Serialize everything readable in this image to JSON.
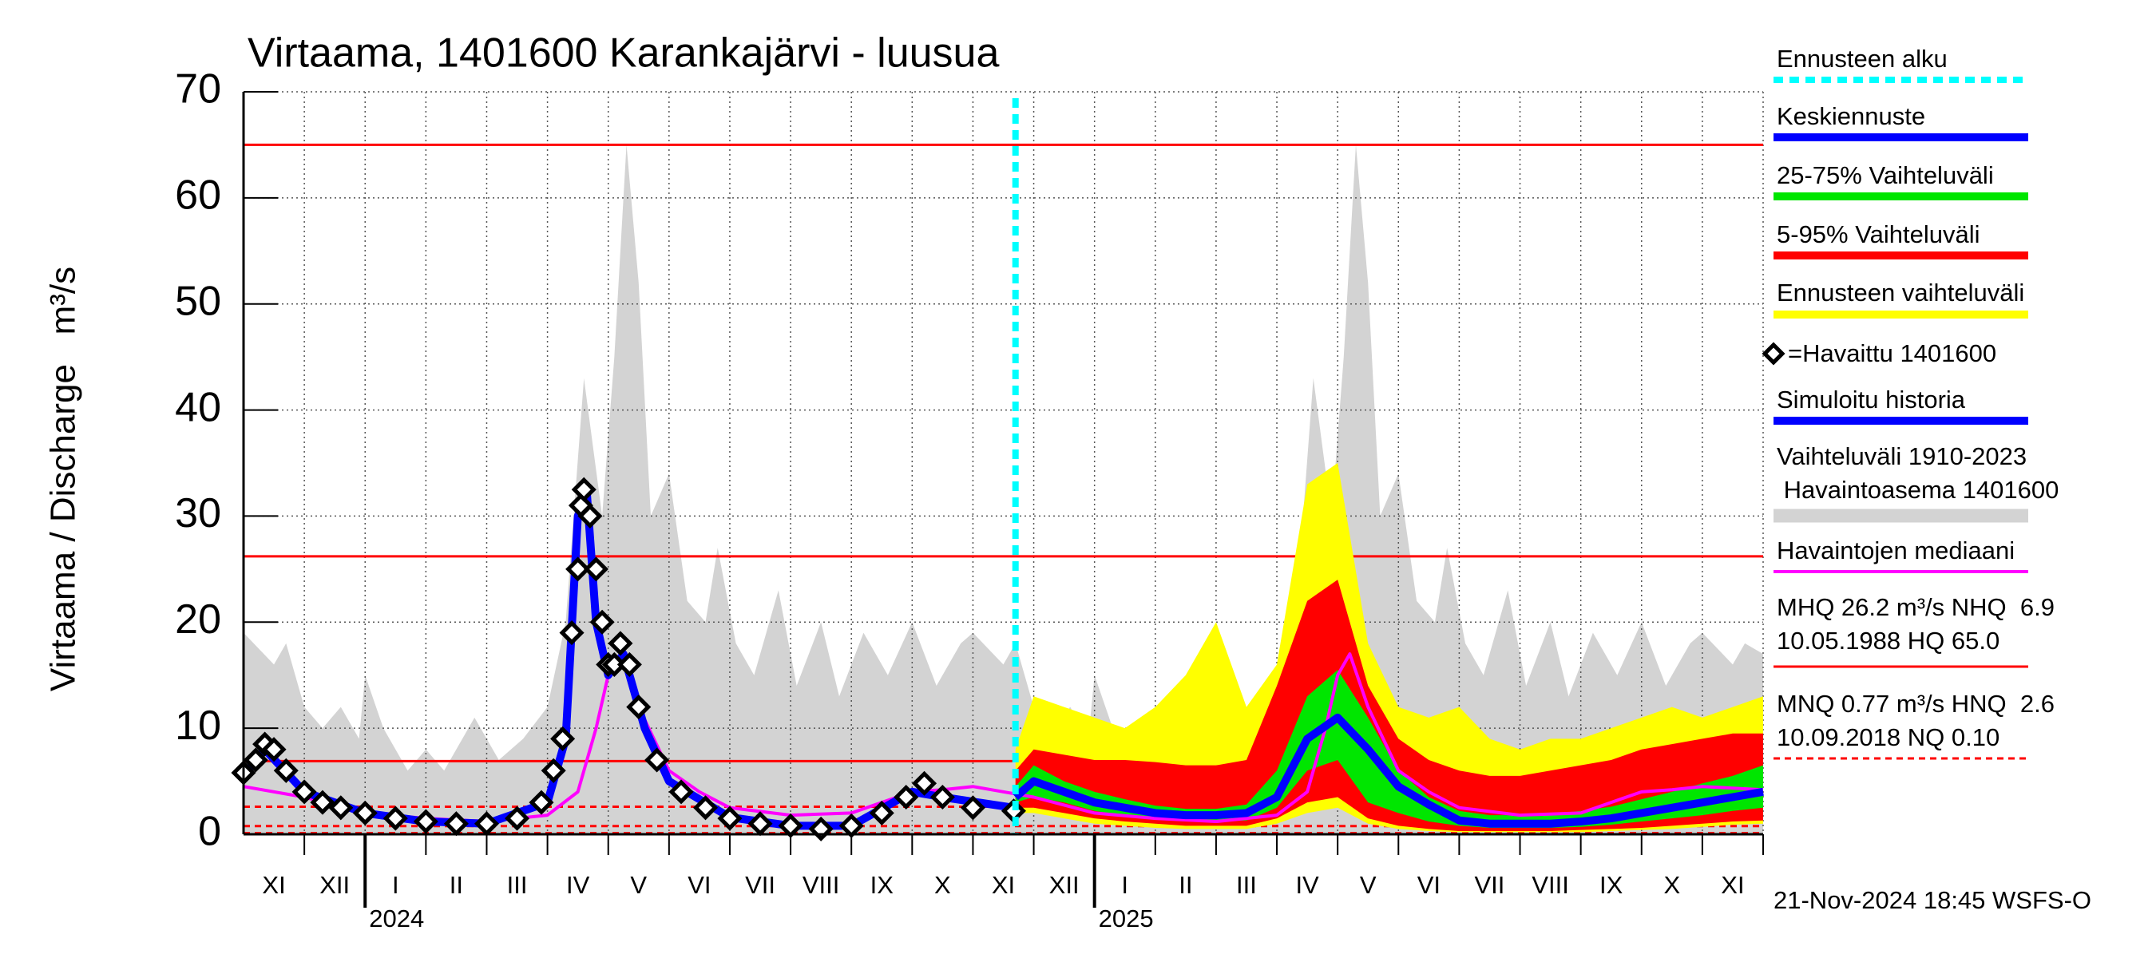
{
  "chart_data": {
    "type": "line",
    "title": "Virtaama, 1401600 Karankajärvi - luusua",
    "ylabel": "Virtaama / Discharge   m³/s",
    "timestamp": "21-Nov-2024 18:45 WSFS-O",
    "categories": [
      "XI",
      "XII",
      "I",
      "II",
      "III",
      "IV",
      "V",
      "VI",
      "VII",
      "VIII",
      "IX",
      "X",
      "XI",
      "XII",
      "I",
      "II",
      "III",
      "IV",
      "V",
      "VI",
      "VII",
      "VIII",
      "IX",
      "X",
      "XI"
    ],
    "xlim": [
      0,
      25
    ],
    "xticks": [
      {
        "value": 2,
        "label": "2024"
      },
      {
        "value": 14,
        "label": "2025"
      }
    ],
    "ylim": [
      0,
      70
    ],
    "yticks": [
      0,
      10,
      20,
      30,
      40,
      50,
      60,
      70
    ],
    "grid": true,
    "forecast_start": {
      "name": "Ennusteen alku",
      "x": 12.7,
      "color": "#00ffff"
    },
    "series": [
      {
        "name": "Keskiennuste",
        "kind": "line",
        "style": "thick",
        "color": "#0000ff",
        "x": [
          12.7,
          13,
          13.5,
          14,
          14.5,
          15,
          15.5,
          16,
          16.5,
          17,
          17.5,
          18,
          18.5,
          19,
          19.5,
          20,
          20.5,
          21,
          21.5,
          22,
          22.5,
          23,
          23.5,
          24,
          24.5,
          25
        ],
        "values": [
          3.5,
          5,
          4,
          3,
          2.5,
          2,
          1.8,
          1.8,
          2,
          3.5,
          9,
          11,
          8,
          4.5,
          2.8,
          1.3,
          1,
          1,
          1,
          1.2,
          1.5,
          2,
          2.5,
          3,
          3.5,
          4
        ]
      },
      {
        "name": "25-75% Vaihteluväli",
        "kind": "band",
        "color": "#00e600",
        "x": [
          12.7,
          13,
          13.5,
          14,
          14.5,
          15,
          15.5,
          16,
          16.5,
          17,
          17.5,
          18,
          18.5,
          19,
          19.5,
          20,
          20.5,
          21,
          21.5,
          22,
          22.5,
          23,
          23.5,
          24,
          24.5,
          25
        ],
        "lower": [
          3,
          3.5,
          3,
          2.2,
          1.8,
          1.4,
          1.2,
          1.2,
          1.3,
          2.5,
          6,
          7,
          3,
          2,
          1.2,
          0.8,
          0.6,
          0.6,
          0.6,
          0.7,
          0.9,
          1.2,
          1.5,
          1.8,
          2.2,
          2.5
        ],
        "upper": [
          4.5,
          6.5,
          5,
          4,
          3.3,
          2.7,
          2.4,
          2.4,
          2.8,
          6,
          13,
          15.5,
          11,
          6,
          3.5,
          2.2,
          1.8,
          1.8,
          1.9,
          2.2,
          2.6,
          3.3,
          4,
          4.8,
          5.5,
          6.5
        ]
      },
      {
        "name": "5-95% Vaihteluväli",
        "kind": "band",
        "color": "#ff0000",
        "x": [
          12.7,
          13,
          13.5,
          14,
          14.5,
          15,
          15.5,
          16,
          16.5,
          17,
          17.5,
          18,
          18.5,
          19,
          19.5,
          20,
          20.5,
          21,
          21.5,
          22,
          22.5,
          23,
          23.5,
          24,
          24.5,
          25
        ],
        "lower": [
          2.5,
          2.5,
          2,
          1.5,
          1.2,
          1,
          0.8,
          0.8,
          0.8,
          1.5,
          3,
          3.5,
          1.5,
          0.8,
          0.5,
          0.3,
          0.3,
          0.3,
          0.3,
          0.4,
          0.5,
          0.6,
          0.8,
          1,
          1.2,
          1.3
        ],
        "upper": [
          6,
          8,
          7.5,
          7,
          7,
          6.8,
          6.5,
          6.5,
          7,
          14,
          22,
          24,
          14,
          9,
          7,
          6,
          5.5,
          5.5,
          6,
          6.5,
          7,
          8,
          8.5,
          9,
          9.5,
          9.5
        ]
      },
      {
        "name": "Ennusteen vaihteluväli",
        "kind": "band",
        "color": "#ffff00",
        "x": [
          12.7,
          13,
          13.5,
          14,
          14.5,
          15,
          15.5,
          16,
          16.5,
          17,
          17.5,
          18,
          18.5,
          19,
          19.5,
          20,
          20.5,
          21,
          21.5,
          22,
          22.5,
          23,
          23.5,
          24,
          24.5,
          25
        ],
        "lower": [
          2,
          2,
          1.5,
          1,
          0.8,
          0.6,
          0.5,
          0.5,
          0.5,
          1,
          2,
          2.5,
          1,
          0.5,
          0.3,
          0.2,
          0.2,
          0.2,
          0.2,
          0.2,
          0.3,
          0.4,
          0.5,
          0.7,
          0.9,
          1
        ],
        "upper": [
          8,
          13,
          12,
          11,
          10,
          12,
          15,
          20,
          12,
          16,
          33,
          35,
          18,
          12,
          11,
          12,
          9,
          8,
          9,
          9,
          10,
          11,
          12,
          11,
          12,
          13
        ]
      },
      {
        "name": "=Havaittu 1401600",
        "kind": "markers",
        "color": "#000000",
        "x": [
          0,
          0.2,
          0.35,
          0.5,
          0.7,
          1,
          1.3,
          1.6,
          2,
          2.5,
          3,
          3.5,
          4,
          4.5,
          4.9,
          5.1,
          5.25,
          5.4,
          5.5,
          5.55,
          5.6,
          5.7,
          5.8,
          5.9,
          6.0,
          6.1,
          6.2,
          6.35,
          6.5,
          6.8,
          7.2,
          7.6,
          8,
          8.5,
          9,
          9.5,
          10,
          10.5,
          10.9,
          11.2,
          11.5,
          12,
          12.67
        ],
        "values": [
          5.8,
          7,
          8.5,
          8,
          6,
          4,
          3,
          2.5,
          2,
          1.5,
          1.2,
          1,
          1,
          1.5,
          3,
          6,
          9,
          19,
          25,
          31,
          32.5,
          30,
          25,
          20,
          16,
          16,
          18,
          16,
          12,
          7,
          4,
          2.5,
          1.5,
          1,
          0.8,
          0.5,
          0.8,
          2,
          3.5,
          4.8,
          3.5,
          2.5,
          2.2
        ]
      },
      {
        "name": "Simuloitu historia",
        "kind": "line",
        "style": "thick",
        "color": "#0000ff",
        "x": [
          0,
          0.35,
          1,
          2,
          3,
          4,
          5,
          5.3,
          5.5,
          5.65,
          5.8,
          6.0,
          6.25,
          6.6,
          7,
          8,
          9,
          10,
          11,
          11.5,
          12.67
        ],
        "values": [
          5.5,
          8,
          4,
          2,
          1.2,
          1,
          3,
          9,
          30,
          32,
          20,
          15,
          17,
          10,
          5,
          1.6,
          0.8,
          0.8,
          4,
          3.5,
          2.5
        ]
      },
      {
        "name": "Vaihteluväli 1910-2023\n Havaintoasema 1401600",
        "kind": "area",
        "color": "#d3d3d3",
        "x": [
          0,
          0.5,
          0.7,
          1,
          1.3,
          1.6,
          1.9,
          2.0,
          2.3,
          2.7,
          3,
          3.3,
          3.8,
          4.2,
          4.6,
          5,
          5.3,
          5.6,
          5.9,
          6.1,
          6.3,
          6.5,
          6.7,
          7.0,
          7.3,
          7.6,
          7.8,
          8.1,
          8.4,
          8.8,
          9.1,
          9.5,
          9.8,
          10.2,
          10.6,
          11,
          11.4,
          11.8,
          12,
          12.5,
          12.7,
          13,
          13.3,
          13.6,
          13.9,
          14.0,
          14.3,
          14.7,
          15,
          15.3,
          15.8,
          16.2,
          16.6,
          17,
          17.3,
          17.6,
          17.9,
          18.1,
          18.3,
          18.5,
          18.7,
          19.0,
          19.3,
          19.6,
          19.8,
          20.1,
          20.4,
          20.8,
          21.1,
          21.5,
          21.8,
          22.2,
          22.6,
          23,
          23.4,
          23.8,
          24,
          24.5,
          24.7,
          25
        ],
        "values": [
          19,
          16,
          18,
          12,
          10,
          12,
          9,
          15,
          10,
          6,
          8,
          6,
          11,
          7,
          9,
          12,
          20,
          43,
          30,
          45,
          65,
          52,
          30,
          34,
          22,
          20,
          27,
          18,
          15,
          23,
          14,
          20,
          13,
          19,
          15,
          20,
          14,
          18,
          19,
          16,
          18,
          12,
          10,
          12,
          9,
          15,
          10,
          6,
          8,
          6,
          11,
          7,
          9,
          12,
          20,
          43,
          30,
          45,
          65,
          52,
          30,
          34,
          22,
          20,
          27,
          18,
          15,
          23,
          14,
          20,
          13,
          19,
          15,
          20,
          14,
          18,
          19,
          16,
          18,
          17
        ]
      },
      {
        "name": "Havaintojen mediaani",
        "kind": "line",
        "style": "thin",
        "color": "#ff00ff",
        "x": [
          0,
          1,
          2,
          3,
          4,
          5,
          5.5,
          5.8,
          6.0,
          6.2,
          6.5,
          7,
          7.5,
          8,
          9,
          10,
          10.5,
          11,
          11.5,
          12,
          13,
          14,
          15,
          16,
          17,
          17.5,
          17.8,
          18,
          18.2,
          18.5,
          19,
          19.5,
          20,
          21,
          22,
          22.5,
          23,
          23.5,
          24,
          25
        ],
        "values": [
          4.5,
          3.5,
          2,
          1.5,
          1.2,
          1.8,
          4,
          10,
          15,
          17,
          12,
          6,
          4,
          2.5,
          1.8,
          2,
          3,
          4,
          4.2,
          4.5,
          3.5,
          2,
          1.5,
          1.2,
          1.8,
          4,
          10,
          15,
          17,
          12,
          6,
          4,
          2.5,
          1.8,
          2,
          3,
          4,
          4.2,
          4.5,
          4.2
        ]
      }
    ],
    "hlines": [
      {
        "value": 65,
        "dashed": false
      },
      {
        "value": 26.2,
        "dashed": false
      },
      {
        "value": 6.9,
        "dashed": false
      },
      {
        "value": 2.6,
        "dashed": true
      },
      {
        "value": 0.77,
        "dashed": true
      },
      {
        "value": 0.1,
        "dashed": true
      }
    ],
    "hline_color": "#ff0000",
    "stats": [
      {
        "text": "MHQ 26.2 m³/s NHQ  6.9\n10.05.1988 HQ 65.0",
        "dashed": false
      },
      {
        "text": "MNQ 0.77 m³/s HNQ  2.6\n10.09.2018 NQ 0.10",
        "dashed": true
      }
    ]
  }
}
